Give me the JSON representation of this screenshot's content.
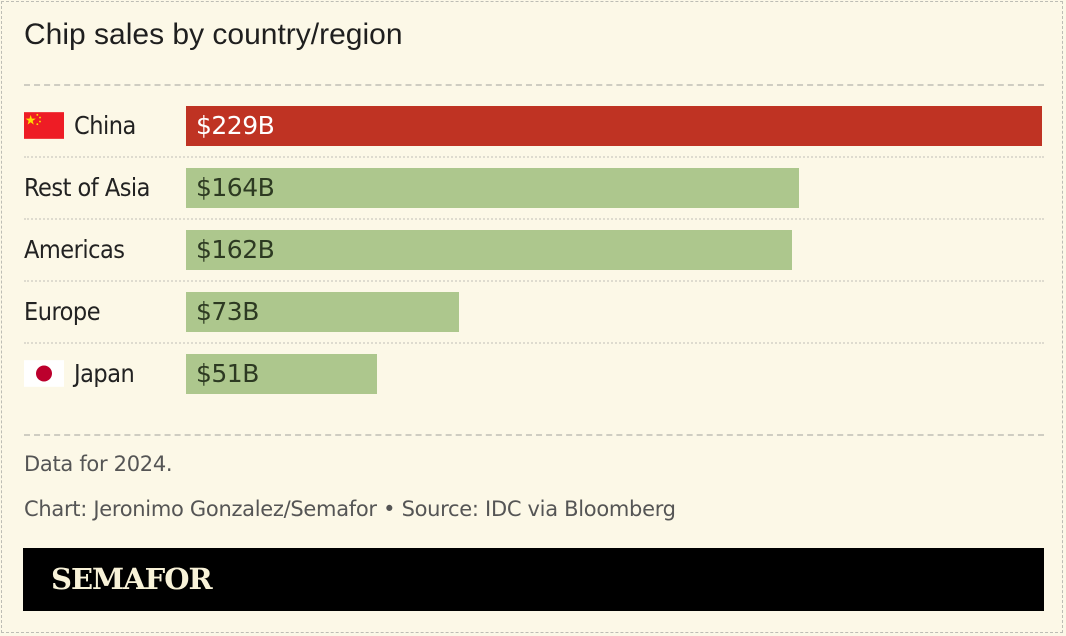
{
  "chart_data": {
    "type": "bar",
    "orientation": "horizontal",
    "title": "Chip sales by country/region",
    "categories": [
      "China",
      "Rest of Asia",
      "Americas",
      "Europe",
      "Japan"
    ],
    "values": [
      229,
      164,
      162,
      73,
      51
    ],
    "value_labels": [
      "$229B",
      "$164B",
      "$162B",
      "$73B",
      "$51B"
    ],
    "flags": [
      "china-flag-icon",
      null,
      null,
      null,
      "japan-flag-icon"
    ],
    "colors": [
      "#bf3323",
      "#adc78d",
      "#adc78d",
      "#adc78d",
      "#adc78d"
    ],
    "xlim": [
      0,
      229
    ],
    "xlabel": "",
    "ylabel": "",
    "grid": false
  },
  "notes": {
    "data_note": "Data for 2024.",
    "credit": "Chart: Jeronimo Gonzalez/Semafor • Source: IDC via Bloomberg"
  },
  "footer": {
    "logo": "SEMAFOR"
  }
}
